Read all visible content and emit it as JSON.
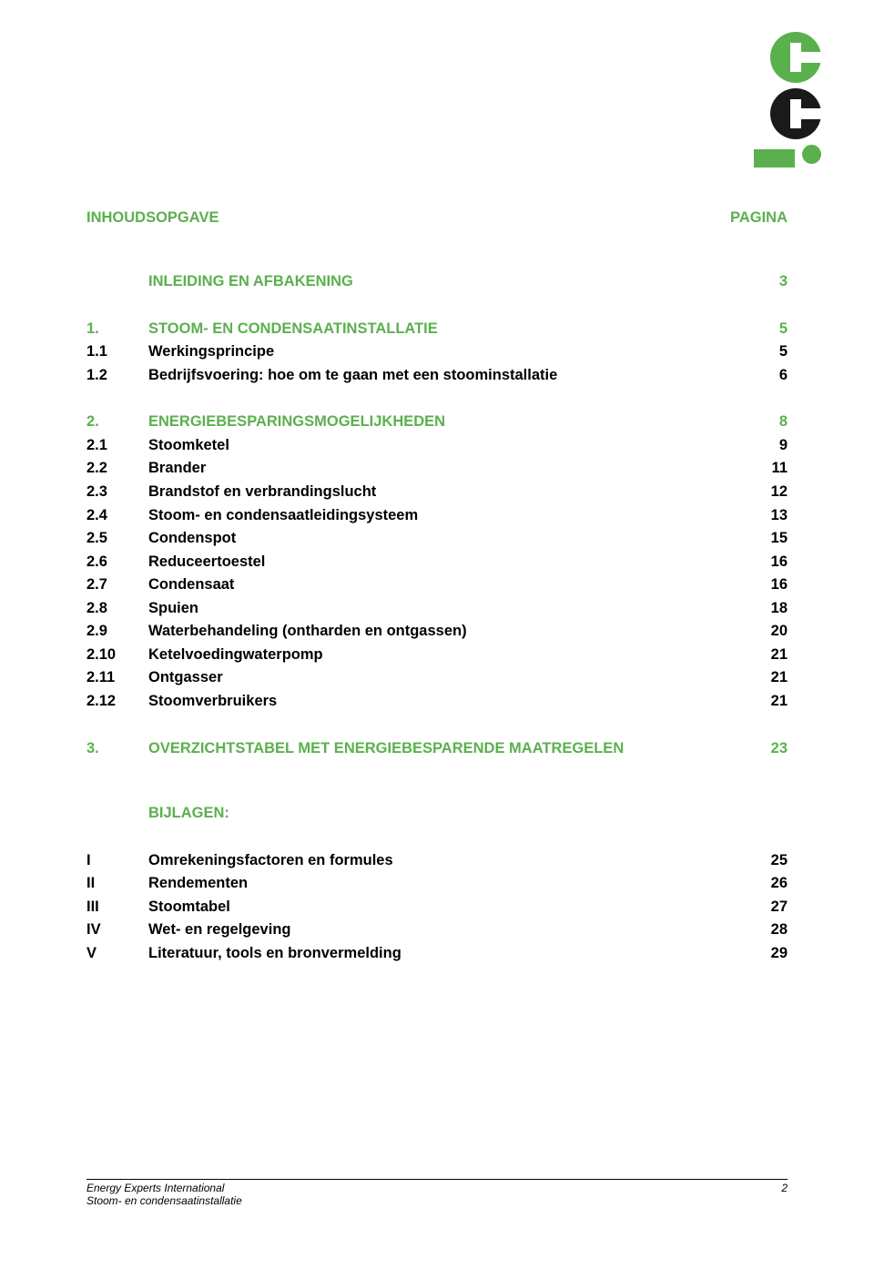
{
  "colors": {
    "accent": "#5bb04e",
    "text": "#000000",
    "background": "#ffffff"
  },
  "typography": {
    "body_fontsize_pt": 12,
    "footer_fontsize_pt": 9,
    "font_family": "Arial"
  },
  "header": {
    "title": "INHOUDSOPGAVE",
    "page_label": "PAGINA"
  },
  "toc": {
    "entries": [
      {
        "num": "",
        "title": "INLEIDING EN AFBAKENING",
        "page": "3",
        "style": "green",
        "gap_after": "large"
      },
      {
        "num": "1.",
        "title": "STOOM- EN CONDENSAATINSTALLATIE",
        "page": "5",
        "style": "green"
      },
      {
        "num": "1.1",
        "title": "Werkingsprincipe",
        "page": "5",
        "style": "black"
      },
      {
        "num": "1.2",
        "title": "Bedrijfsvoering: hoe om te gaan met een stoominstallatie",
        "page": "6",
        "style": "black",
        "gap_after": "large"
      },
      {
        "num": "2.",
        "title": "ENERGIEBESPARINGSMOGELIJKHEDEN",
        "page": "8",
        "style": "green"
      },
      {
        "num": "2.1",
        "title": "Stoomketel",
        "page": "9",
        "style": "black"
      },
      {
        "num": "2.2",
        "title": "Brander",
        "page": "11",
        "style": "black"
      },
      {
        "num": "2.3",
        "title": "Brandstof en verbrandingslucht",
        "page": "12",
        "style": "black"
      },
      {
        "num": "2.4",
        "title": "Stoom- en condensaatleidingsysteem",
        "page": "13",
        "style": "black"
      },
      {
        "num": "2.5",
        "title": "Condenspot",
        "page": "15",
        "style": "black"
      },
      {
        "num": "2.6",
        "title": "Reduceertoestel",
        "page": "16",
        "style": "black"
      },
      {
        "num": "2.7",
        "title": "Condensaat",
        "page": "16",
        "style": "black"
      },
      {
        "num": "2.8",
        "title": "Spuien",
        "page": "18",
        "style": "black"
      },
      {
        "num": "2.9",
        "title": "Waterbehandeling (ontharden en ontgassen)",
        "page": "20",
        "style": "black"
      },
      {
        "num": "2.10",
        "title": "Ketelvoedingwaterpomp",
        "page": "21",
        "style": "black"
      },
      {
        "num": "2.11",
        "title": "Ontgasser",
        "page": "21",
        "style": "black"
      },
      {
        "num": "2.12",
        "title": "Stoomverbruikers",
        "page": "21",
        "style": "black",
        "gap_after": "large"
      },
      {
        "num": "3.",
        "title": "OVERZICHTSTABEL MET ENERGIEBESPARENDE MAATREGELEN",
        "page": "23",
        "style": "green",
        "gap_after": "xlarge"
      },
      {
        "num": "",
        "title": "BIJLAGEN:",
        "page": "",
        "style": "green",
        "gap_after": "large"
      },
      {
        "num": "I",
        "title": "Omrekeningsfactoren en formules",
        "page": "25",
        "style": "black"
      },
      {
        "num": "II",
        "title": "Rendementen",
        "page": "26",
        "style": "black"
      },
      {
        "num": "III",
        "title": "Stoomtabel",
        "page": "27",
        "style": "black"
      },
      {
        "num": "IV",
        "title": "Wet- en regelgeving",
        "page": "28",
        "style": "black"
      },
      {
        "num": "V",
        "title": "Literatuur, tools en bronvermelding",
        "page": "29",
        "style": "black"
      }
    ]
  },
  "footer": {
    "left_line1": "Energy Experts International",
    "left_line2": "Stoom- en condensaatinstallatie",
    "page_number": "2"
  }
}
